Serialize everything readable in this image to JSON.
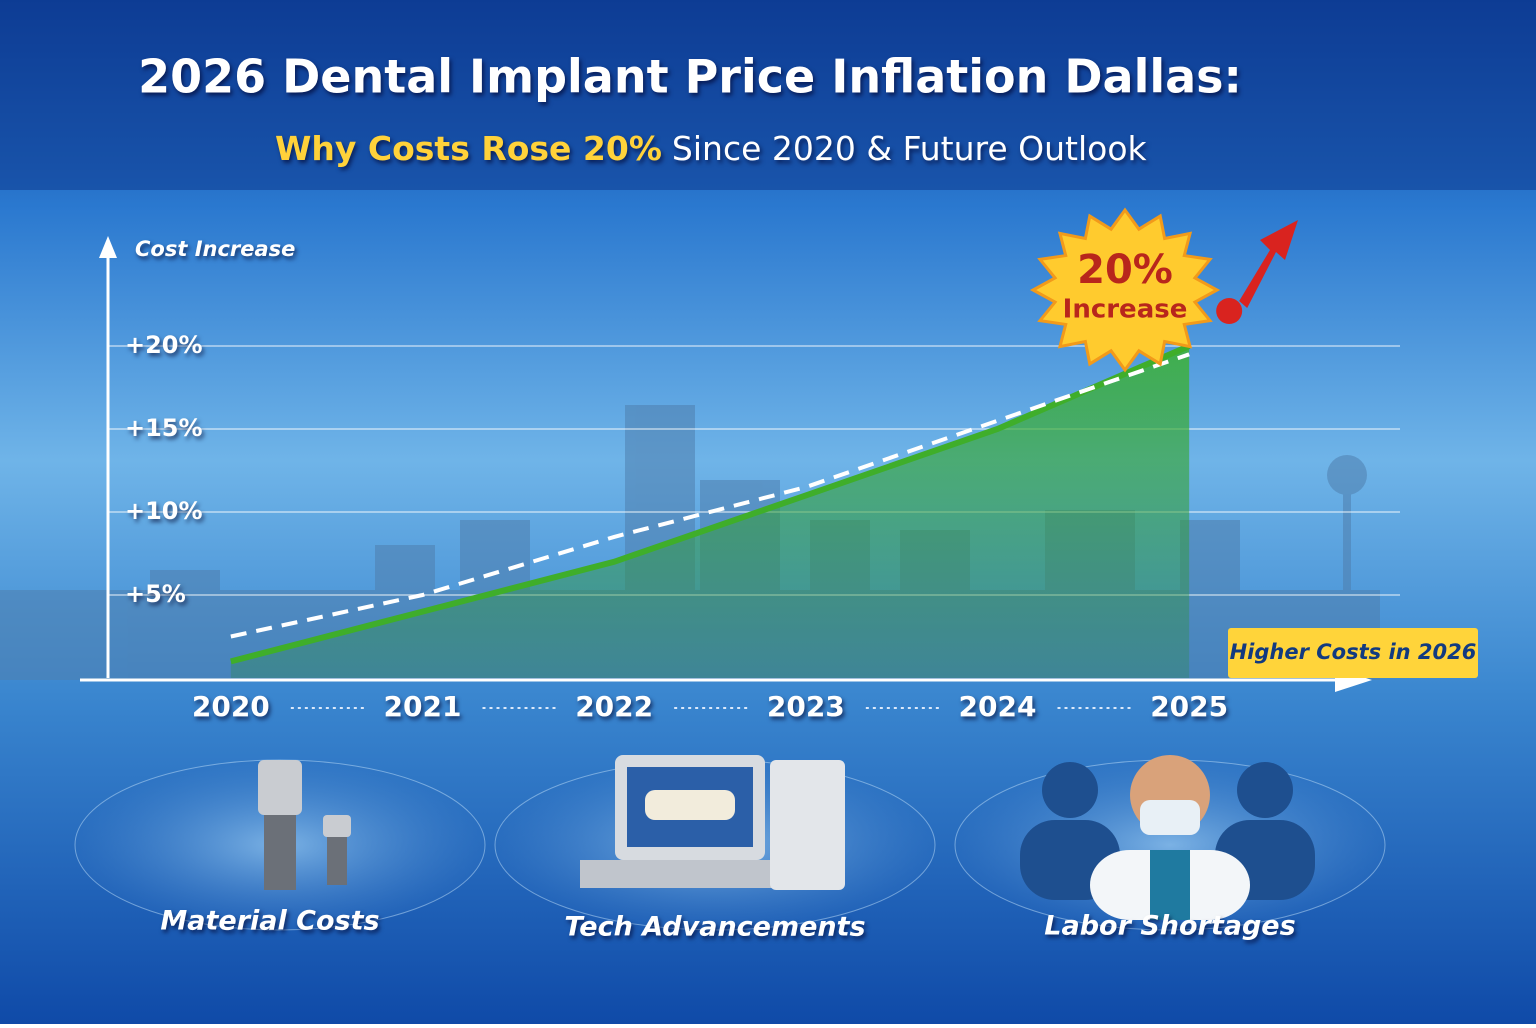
{
  "title": "2026 Dental Implant Price Inflation Dallas:",
  "subtitle_highlight": "Why Costs Rose 20%",
  "subtitle_rest": "Since 2020 & Future Outlook",
  "chart_data": {
    "type": "area",
    "y_label": "Cost Increase",
    "categories": [
      "2020",
      "2021",
      "2022",
      "2023",
      "2024",
      "2025"
    ],
    "series": [
      {
        "color": "#3fae2a",
        "values": [
          1,
          4,
          7,
          11,
          15,
          20
        ]
      },
      {
        "color": "#ffffff",
        "dashed": true,
        "values": [
          2.5,
          5,
          8.5,
          11.5,
          15.5,
          19.5
        ]
      }
    ],
    "ylim": [
      0,
      25
    ],
    "yticks": [
      {
        "value": 5,
        "label": "+5%"
      },
      {
        "value": 10,
        "label": "+10%"
      },
      {
        "value": 15,
        "label": "+15%"
      },
      {
        "value": 20,
        "label": "+20%"
      }
    ],
    "grid": true,
    "badge": [
      "20%",
      "Increase"
    ],
    "callout": "Higher Costs in 2026"
  },
  "factors": [
    "Material Costs",
    "Tech Advancements",
    "Labor Shortages"
  ]
}
